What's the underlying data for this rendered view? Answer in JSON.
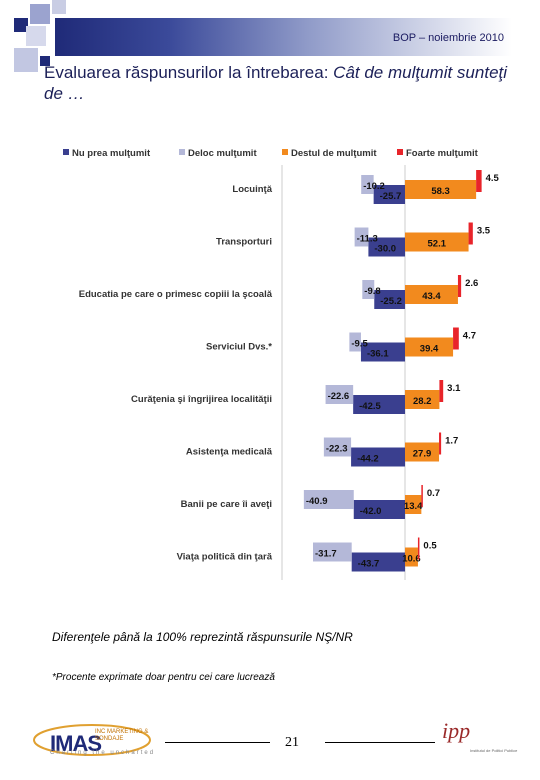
{
  "header": {
    "label": "BOP – noiembrie 2010"
  },
  "title": {
    "prefix": "Evaluarea răspunsurilor la întrebarea: ",
    "question": "Cât de mulţumit sunteţi de …"
  },
  "chart_data": {
    "type": "bar",
    "orientation": "horizontal-diverging",
    "categories": [
      "Locuinţă",
      "Transporturi",
      "Educatia pe care o primesc copiii la şcoală",
      "Serviciul Dvs.*",
      "Curăţenia şi îngrijirea localităţii",
      "Asistenţa medicală",
      "Banii pe care îi aveţi",
      "Viaţa politică din ţară"
    ],
    "series": [
      {
        "name": "Nu prea mulţumit",
        "color": "#3a3f8f",
        "values": [
          -25.7,
          -30.0,
          -25.2,
          -36.1,
          -42.5,
          -44.2,
          -42.0,
          -43.7
        ]
      },
      {
        "name": "Deloc mulţumit",
        "color": "#b4b8d8",
        "values": [
          -10.2,
          -11.3,
          -9.8,
          -9.5,
          -22.6,
          -22.3,
          -40.9,
          -31.7
        ]
      },
      {
        "name": "Destul de mulţumit",
        "color": "#f28a1e",
        "values": [
          58.3,
          52.1,
          43.4,
          39.4,
          28.2,
          27.9,
          13.4,
          10.6
        ]
      },
      {
        "name": "Foarte mulţumit",
        "color": "#e8242a",
        "values": [
          4.5,
          3.5,
          2.6,
          4.7,
          3.1,
          1.7,
          0.7,
          0.5
        ]
      }
    ],
    "legend_position": "top"
  },
  "notes": {
    "line1": "Diferenţele până la 100% reprezintă răspunsurile NŞ/NR",
    "line2": "*Procente exprimate doar pentru cei care lucrează"
  },
  "footer": {
    "logo_main": "IMAS",
    "logo_sub": "INC MARKETING & SONDAJE",
    "logo_tag": "Charting the uncharted",
    "page_number": "21",
    "ipp_logo": "ipp",
    "ipp_sub": "Institutul de Politici Publice"
  }
}
